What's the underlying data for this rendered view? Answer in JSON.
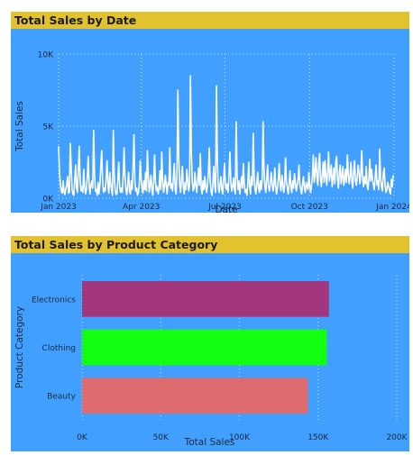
{
  "chart_data": [
    {
      "type": "line",
      "title": "Total Sales by Date",
      "xlabel": "Date",
      "ylabel": "Total Sales",
      "x_ticks": [
        "Jan 2023",
        "Apr 2023",
        "Jul 2023",
        "Oct 2023",
        "Jan 2024"
      ],
      "y_ticks": [
        "0K",
        "5K",
        "10K"
      ],
      "ylim": [
        0,
        10000
      ],
      "xlim": [
        "2023-01-01",
        "2024-01-01"
      ],
      "grid": true,
      "line_color": "#ffffff",
      "background": "#409fff",
      "series": [
        {
          "x_start": "2023-01-01",
          "x_end": "2023-12-31",
          "values": [
            3600,
            1800,
            900,
            500,
            350,
            1200,
            450,
            250,
            650,
            900,
            1500,
            350,
            400,
            3800,
            2200,
            600,
            300,
            200,
            1300,
            2300,
            700,
            400,
            2100,
            3600,
            1200,
            500,
            800,
            400,
            2000,
            800,
            300,
            600,
            1500,
            2900,
            900,
            300,
            900,
            1200,
            700,
            4700,
            1800,
            500,
            600,
            200,
            1100,
            300,
            900,
            2100,
            3300,
            1300,
            400,
            700,
            500,
            1400,
            2600,
            900,
            350,
            1800,
            1000,
            600,
            200,
            4700,
            1700,
            600,
            250,
            300,
            1200,
            2500,
            900,
            400,
            700,
            400,
            1600,
            3500,
            1500,
            600,
            250,
            900,
            1800,
            500,
            300,
            1200,
            600,
            2200,
            4400,
            1200,
            500,
            700,
            200,
            400,
            1000,
            2600,
            1400,
            700,
            350,
            1200,
            600,
            1800,
            500,
            3300,
            1600,
            400,
            900,
            1600,
            600,
            200,
            1200,
            3000,
            1100,
            500,
            800,
            300,
            700,
            1900,
            600,
            3200,
            1300,
            400,
            800,
            1600,
            900,
            300,
            1100,
            900,
            3500,
            700,
            1000,
            500,
            1500,
            2400,
            600,
            300,
            1800,
            7500,
            2800,
            900,
            400,
            1300,
            2200,
            800,
            300,
            1100,
            600,
            2000,
            1200,
            500,
            900,
            8500,
            3200,
            1200,
            500,
            700,
            1800,
            900,
            400,
            1200,
            2100,
            900,
            3100,
            700,
            300,
            1200,
            600,
            1500,
            800,
            400,
            900,
            1800,
            3500,
            1200,
            500,
            200,
            1000,
            2200,
            900,
            400,
            7800,
            2600,
            800,
            400,
            900,
            1500,
            600,
            300,
            1300,
            2400,
            900,
            600,
            1000,
            400,
            1700,
            3200,
            1100,
            500,
            800,
            1400,
            600,
            300,
            5300,
            1700,
            600,
            1200,
            300,
            900,
            1500,
            700,
            2400,
            1000,
            400,
            600,
            200,
            1100,
            2500,
            800,
            300,
            1500,
            900,
            4500,
            1600,
            600,
            300,
            1000,
            1800,
            700,
            400,
            1200,
            600,
            1300,
            5300,
            2000,
            800,
            400,
            1300,
            2300,
            800,
            500,
            900,
            1800,
            1200,
            500,
            800,
            2100,
            900,
            300,
            700,
            1400,
            2400,
            900,
            500,
            1600,
            1000,
            400,
            900,
            2800,
            1200,
            700,
            300,
            1000,
            1900,
            800,
            400,
            1200,
            700,
            1700,
            1100,
            500,
            900,
            1300,
            2300,
            900,
            600,
            300,
            1000,
            1500,
            700,
            400,
            1100,
            800,
            600,
            1800,
            900,
            400,
            900,
            1500,
            3000,
            1100,
            1800,
            2800,
            1400,
            900,
            2400,
            3100,
            1300,
            800,
            1700,
            2500,
            1100,
            2600,
            1500,
            900,
            1900,
            3200,
            1200,
            1700,
            2300,
            800,
            1400,
            2100,
            1000,
            2500,
            2900,
            1300,
            700,
            1800,
            2300,
            1000,
            1500,
            2200,
            900,
            1300,
            2000,
            1100,
            3000,
            1700,
            1000,
            1600,
            2500,
            1100,
            700,
            1900,
            2600,
            1200,
            900,
            1500,
            2300,
            1700,
            1000,
            1800,
            3300,
            1300,
            800,
            1500,
            1000,
            2200,
            900,
            600,
            1400,
            2700,
            1200,
            2000,
            1300,
            900,
            600,
            1500,
            2300,
            900,
            1200,
            600,
            3400,
            1400,
            800,
            500,
            1700,
            2100,
            900,
            400,
            600,
            1100,
            800,
            500,
            300,
            1300,
            800,
            1600
          ]
        }
      ]
    },
    {
      "type": "bar",
      "orientation": "horizontal",
      "title": "Total Sales by Product Category",
      "xlabel": "Total Sales",
      "ylabel": "Product Category",
      "categories": [
        "Electronics",
        "Clothing",
        "Beauty"
      ],
      "values": [
        156905,
        155580,
        143515
      ],
      "colors": [
        "#a3377e",
        "#12ff12",
        "#df6b6e"
      ],
      "x_ticks": [
        "0K",
        "50K",
        "100K",
        "150K",
        "200K"
      ],
      "xlim": [
        0,
        200000
      ],
      "grid": true,
      "background": "#409fff"
    }
  ]
}
